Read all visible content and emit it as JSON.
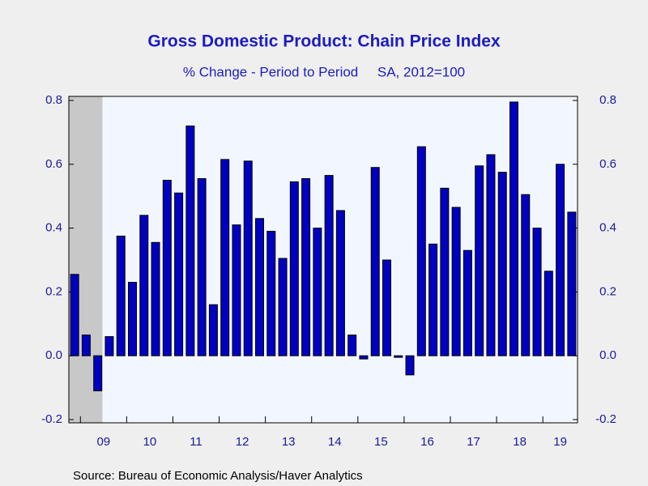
{
  "chart_data": {
    "type": "bar",
    "title": "Gross Domestic Product: Chain Price Index",
    "subtitle": "% Change - Period to Period     SA, 2012=100",
    "source": "Source:  Bureau of Economic Analysis/Haver Analytics",
    "year_labels": [
      "09",
      "10",
      "11",
      "12",
      "13",
      "14",
      "15",
      "16",
      "17",
      "18",
      "19"
    ],
    "values": [
      0.255,
      0.065,
      -0.11,
      0.06,
      0.375,
      0.23,
      0.44,
      0.355,
      0.55,
      0.51,
      0.72,
      0.555,
      0.16,
      0.615,
      0.41,
      0.61,
      0.43,
      0.39,
      0.305,
      0.545,
      0.555,
      0.4,
      0.565,
      0.455,
      0.065,
      -0.01,
      0.59,
      0.3,
      -0.005,
      -0.06,
      0.655,
      0.35,
      0.525,
      0.465,
      0.33,
      0.595,
      0.63,
      0.575,
      0.795,
      0.505,
      0.4,
      0.265,
      0.6,
      0.45
    ],
    "color": "#0000c0",
    "ylim": [
      -0.2,
      0.8
    ],
    "yticks": [
      -0.2,
      {
        "value": 0,
        "label": "0.0"
      },
      0.2,
      0.4,
      0.6,
      0.8
    ]
  }
}
